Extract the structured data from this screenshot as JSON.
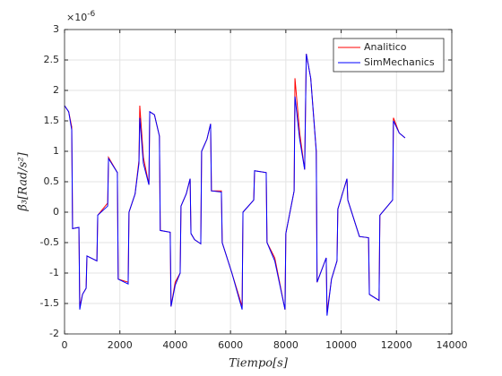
{
  "chart_data": {
    "type": "line",
    "xlabel": "Tiempo[s]",
    "ylabel": "β̈₃[Rad/s²]",
    "y_exponent": {
      "base": "×10",
      "power": "-6"
    },
    "xlim": [
      0,
      14000
    ],
    "xticks": [
      0,
      2000,
      4000,
      6000,
      8000,
      10000,
      12000,
      14000
    ],
    "ylim": [
      -2,
      3
    ],
    "yticks": [
      -2,
      -1.5,
      -1,
      -0.5,
      0,
      0.5,
      1,
      1.5,
      2,
      2.5,
      3
    ],
    "grid": true,
    "legend_position": "northeast",
    "x": [
      0,
      150,
      260,
      290,
      520,
      550,
      650,
      780,
      810,
      1170,
      1200,
      1560,
      1590,
      1910,
      1940,
      2300,
      2330,
      2550,
      2690,
      2720,
      2850,
      3050,
      3080,
      3250,
      3430,
      3460,
      3820,
      3850,
      4000,
      4180,
      4210,
      4400,
      4540,
      4570,
      4700,
      4925,
      4955,
      5150,
      5280,
      5310,
      5670,
      5700,
      6050,
      6420,
      6450,
      6840,
      6870,
      7290,
      7320,
      7600,
      7970,
      8000,
      8300,
      8330,
      8500,
      8680,
      8740,
      8900,
      9100,
      9130,
      9460,
      9490,
      9650,
      9850,
      9880,
      10210,
      10240,
      10660,
      10990,
      11020,
      11370,
      11400,
      11860,
      11890,
      12100,
      12310
    ],
    "series": [
      {
        "name": "Analitico",
        "color": "#ff0000",
        "values": [
          1.75,
          1.65,
          1.4,
          -0.27,
          -0.25,
          -1.55,
          -1.35,
          -1.25,
          -0.72,
          -0.8,
          -0.05,
          0.15,
          0.9,
          0.65,
          -1.1,
          -1.15,
          0,
          0.3,
          0.85,
          1.75,
          0.9,
          0.45,
          1.65,
          1.6,
          1.25,
          -0.3,
          -0.33,
          -1.55,
          -1.15,
          -1.0,
          0.1,
          0.3,
          0.55,
          -0.35,
          -0.45,
          -0.52,
          1.0,
          1.2,
          1.45,
          0.35,
          0.35,
          -0.5,
          -1.0,
          -1.55,
          0,
          0.2,
          0.68,
          0.65,
          -0.5,
          -0.75,
          -1.6,
          -0.35,
          0.35,
          2.2,
          1.3,
          0.7,
          2.6,
          2.2,
          1.0,
          -1.15,
          -0.75,
          -1.65,
          -1.1,
          -0.8,
          0.05,
          0.55,
          0.2,
          -0.4,
          -0.42,
          -1.35,
          -1.45,
          -0.05,
          0.2,
          1.55,
          1.3,
          1.22
        ]
      },
      {
        "name": "SimMechanics",
        "color": "#0000ff",
        "values": [
          1.75,
          1.65,
          1.35,
          -0.27,
          -0.25,
          -1.6,
          -1.35,
          -1.25,
          -0.72,
          -0.8,
          -0.05,
          0.1,
          0.88,
          0.65,
          -1.1,
          -1.18,
          0,
          0.3,
          0.8,
          1.55,
          0.8,
          0.45,
          1.65,
          1.6,
          1.25,
          -0.3,
          -0.33,
          -1.55,
          -1.2,
          -1.0,
          0.1,
          0.3,
          0.55,
          -0.35,
          -0.45,
          -0.52,
          1.0,
          1.2,
          1.45,
          0.35,
          0.33,
          -0.5,
          -1.0,
          -1.6,
          0,
          0.2,
          0.68,
          0.65,
          -0.5,
          -0.8,
          -1.6,
          -0.35,
          0.35,
          1.9,
          1.2,
          0.7,
          2.6,
          2.2,
          1.0,
          -1.15,
          -0.75,
          -1.7,
          -1.1,
          -0.8,
          0.05,
          0.55,
          0.2,
          -0.4,
          -0.42,
          -1.35,
          -1.45,
          -0.05,
          0.2,
          1.5,
          1.3,
          1.22
        ]
      }
    ]
  }
}
